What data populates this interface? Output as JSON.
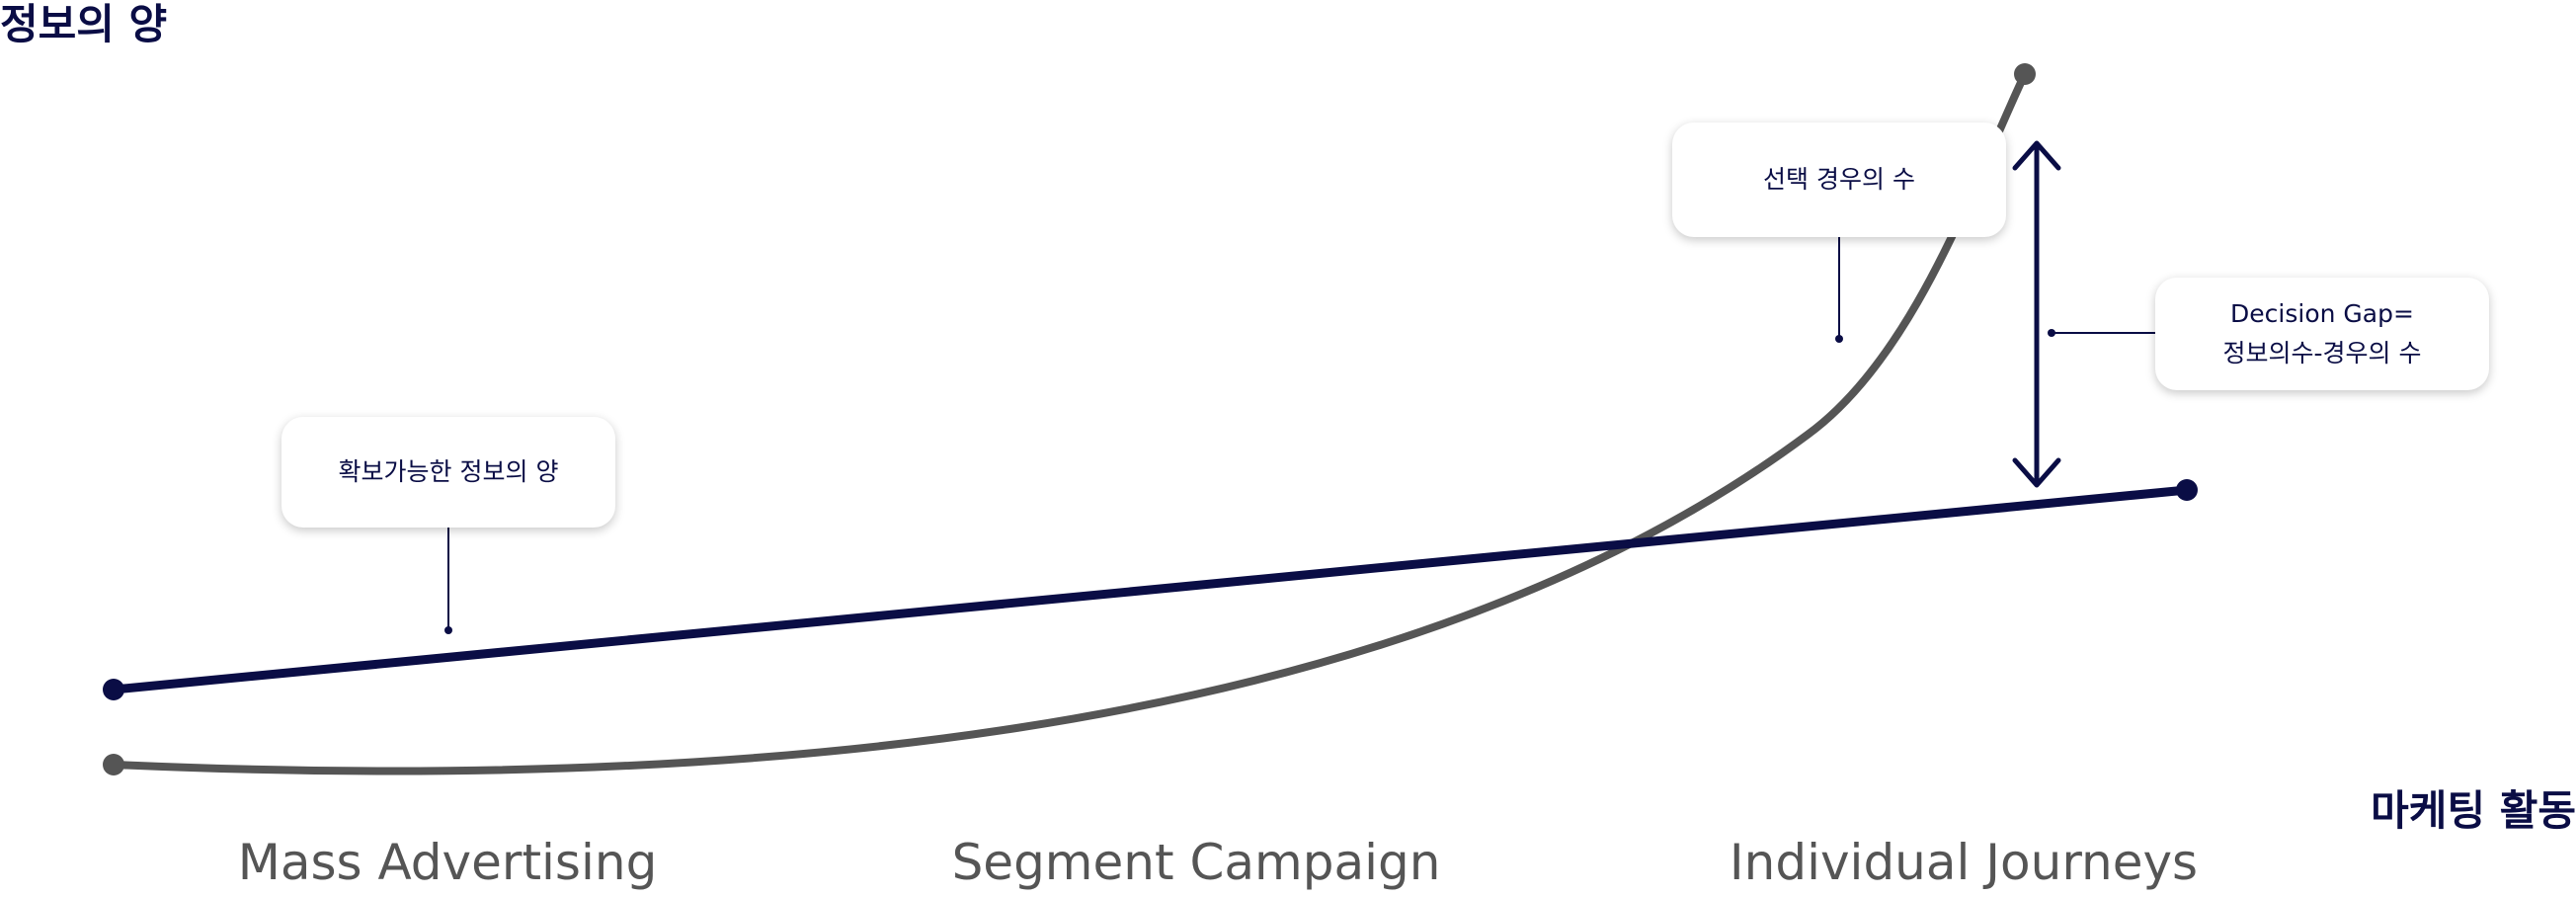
{
  "axes": {
    "y_title": "정보의 양",
    "x_title": "마케팅 활동"
  },
  "stages": [
    "Mass Advertising",
    "Segment Campaign",
    "Individual Journeys"
  ],
  "callouts": {
    "info_amount": "확보가능한 정보의 양",
    "choice_count": "선택 경우의 수",
    "decision_gap_line1": "Decision Gap=",
    "decision_gap_line2": "정보의수-경우의 수"
  },
  "colors": {
    "info_line": "#0a0d45",
    "choice_curve": "#555555",
    "text_dark": "#0a0d45",
    "stage_text": "#555555"
  }
}
